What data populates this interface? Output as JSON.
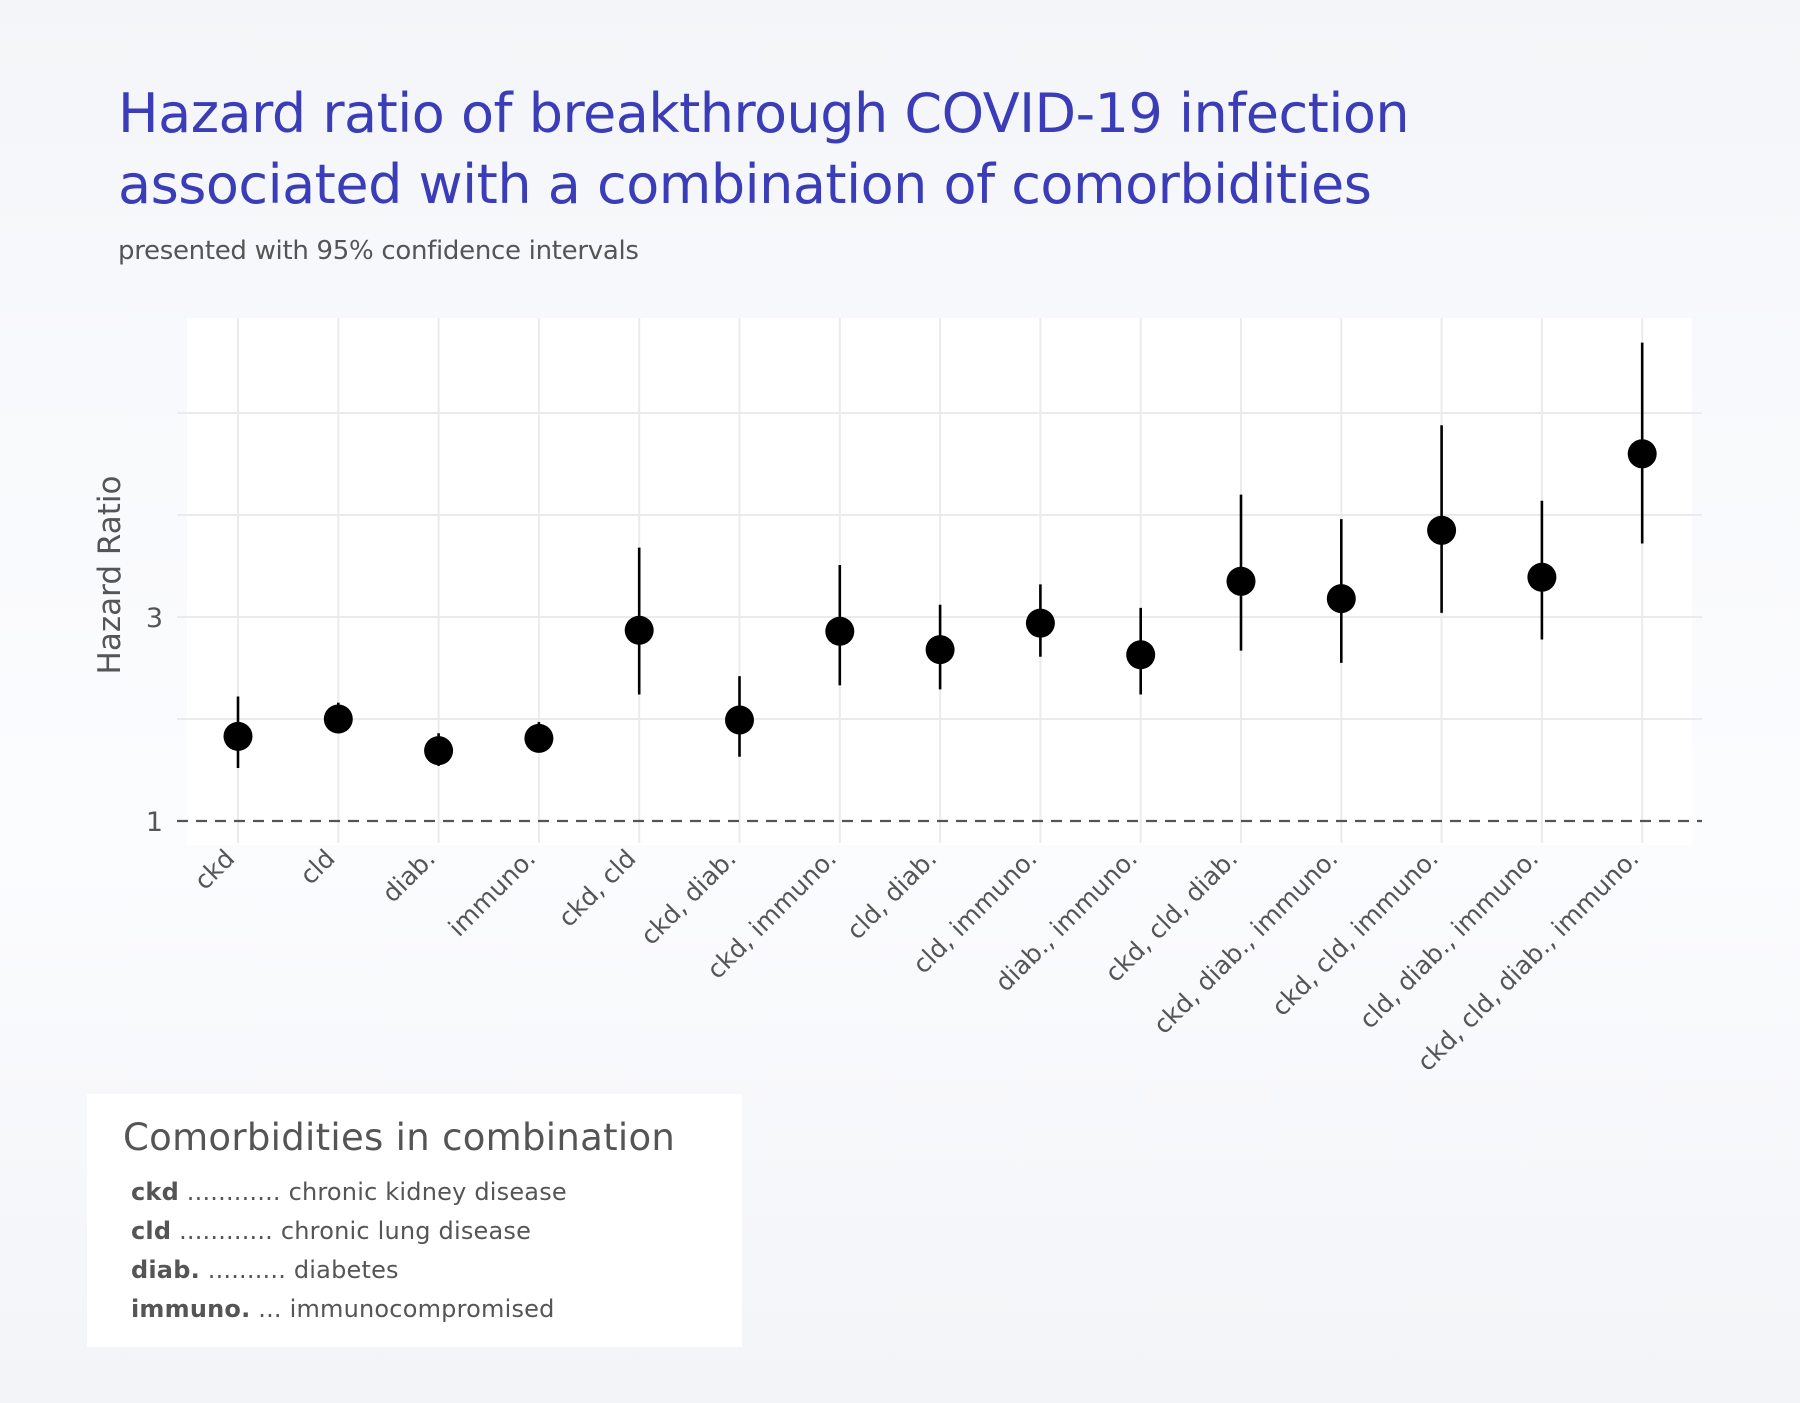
{
  "title": {
    "line1": "Hazard ratio of breakthrough COVID-19 infection",
    "line2": "associated with a combination of comorbidities",
    "color": "#3a3db7"
  },
  "subtitle": "presented with 95% confidence intervals",
  "chart_data": {
    "type": "scatter",
    "title": "Hazard ratio of breakthrough COVID-19 infection associated with a combination of comorbidities",
    "subtitle": "presented with 95% confidence intervals",
    "xlabel": "",
    "ylabel": "Hazard Ratio",
    "ylim": [
      0.95,
      6.0
    ],
    "yticks": [
      1,
      3
    ],
    "ygrid": [
      2,
      3,
      4,
      5
    ],
    "reference_line": {
      "y": 1,
      "style": "dashed"
    },
    "grid": true,
    "x_tick_rotation": -45,
    "categories": [
      "ckd",
      "cld",
      "diab.",
      "immuno.",
      "ckd, cld",
      "ckd, diab.",
      "ckd, immuno.",
      "cld, diab.",
      "cld, immuno.",
      "diab., immuno.",
      "ckd, cld, diab.",
      "ckd, diab., immuno.",
      "ckd, cld, immuno.",
      "cld, diab., immuno.",
      "ckd, cld, diab., immuno."
    ],
    "series": [
      {
        "name": "Hazard Ratio",
        "marker_color": "#000000",
        "values": [
          1.83,
          2.0,
          1.69,
          1.81,
          2.87,
          1.99,
          2.86,
          2.68,
          2.94,
          2.63,
          3.35,
          3.18,
          3.85,
          3.39,
          4.6
        ],
        "ci_lower": [
          1.52,
          1.86,
          1.54,
          1.68,
          2.24,
          1.63,
          2.33,
          2.29,
          2.61,
          2.24,
          2.67,
          2.55,
          3.04,
          2.78,
          3.72
        ],
        "ci_upper": [
          2.22,
          2.16,
          1.86,
          1.97,
          3.68,
          2.42,
          3.51,
          3.12,
          3.32,
          3.09,
          4.2,
          3.96,
          4.88,
          4.14,
          5.69
        ]
      }
    ]
  },
  "legend": {
    "title": "Comorbidities in combination",
    "items": [
      {
        "abbr": "ckd",
        "dots": " ............ ",
        "meaning": "chronic kidney disease"
      },
      {
        "abbr": "cld",
        "dots": " ............ ",
        "meaning": "chronic lung disease"
      },
      {
        "abbr": "diab.",
        "dots": " .......... ",
        "meaning": "diabetes"
      },
      {
        "abbr": "immuno.",
        "dots": " ... ",
        "meaning": "immunocompromised"
      }
    ]
  }
}
